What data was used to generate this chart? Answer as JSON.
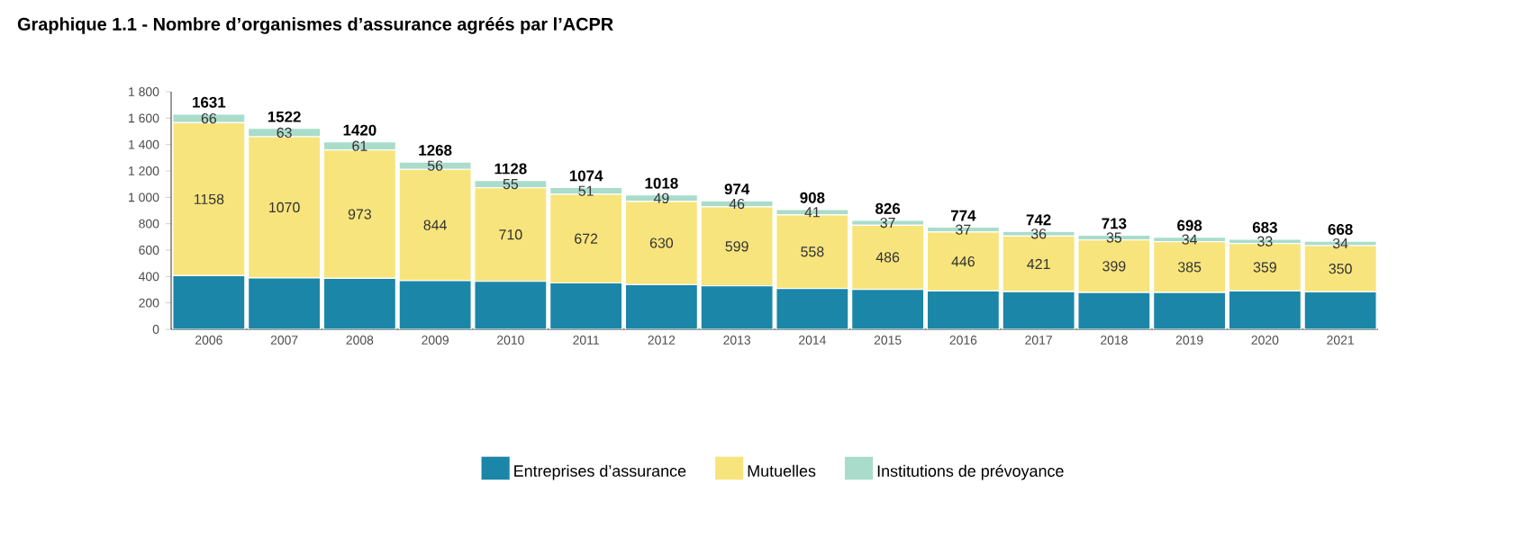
{
  "chart_data": {
    "type": "bar",
    "stacked": true,
    "title": "Graphique 1.1 - Nombre d’organismes d’assurance agréés par l’ACPR",
    "categories": [
      "2006",
      "2007",
      "2008",
      "2009",
      "2010",
      "2011",
      "2012",
      "2013",
      "2014",
      "2015",
      "2016",
      "2017",
      "2018",
      "2019",
      "2020",
      "2021"
    ],
    "series": [
      {
        "name": "Entreprises d’assurance",
        "color": "#1b86a8",
        "values": [
          407,
          389,
          386,
          368,
          363,
          351,
          339,
          329,
          309,
          303,
          291,
          285,
          279,
          279,
          291,
          284
        ]
      },
      {
        "name": "Mutuelles",
        "color": "#f7e47c",
        "values": [
          1158,
          1070,
          973,
          844,
          710,
          672,
          630,
          599,
          558,
          486,
          446,
          421,
          399,
          385,
          359,
          350
        ],
        "value_labels": [
          "1158",
          "1070",
          "973",
          "844",
          "710",
          "672",
          "630",
          "599",
          "558",
          "486",
          "446",
          "421",
          "399",
          "385",
          "359",
          "350"
        ]
      },
      {
        "name": "Institutions de prévoyance",
        "color": "#a9dccb",
        "values": [
          66,
          63,
          61,
          56,
          55,
          51,
          49,
          46,
          41,
          37,
          37,
          36,
          35,
          34,
          33,
          34
        ],
        "value_labels": [
          "66",
          "63",
          "61",
          "56",
          "55",
          "51",
          "49",
          "46",
          "41",
          "37",
          "37",
          "36",
          "35",
          "34",
          "33",
          "34"
        ]
      }
    ],
    "totals": [
      "1631",
      "1522",
      "1420",
      "1268",
      "1128",
      "1074",
      "1018",
      "974",
      "908",
      "826",
      "774",
      "742",
      "713",
      "698",
      "683",
      "668"
    ],
    "ylim": [
      0,
      1800
    ],
    "yticks": [
      0,
      {
        "value": 200,
        "label": "200"
      },
      {
        "value": 400,
        "label": "400"
      },
      {
        "value": 600,
        "label": "600"
      },
      {
        "value": 800,
        "label": "800"
      },
      {
        "value": 1000,
        "label": "1 000"
      },
      {
        "value": 1200,
        "label": "1 200"
      },
      {
        "value": 1400,
        "label": "1 400"
      },
      {
        "value": 1600,
        "label": "1 600"
      },
      {
        "value": 1800,
        "label": "1 800"
      }
    ],
    "legend": "bottom",
    "grid": false
  }
}
